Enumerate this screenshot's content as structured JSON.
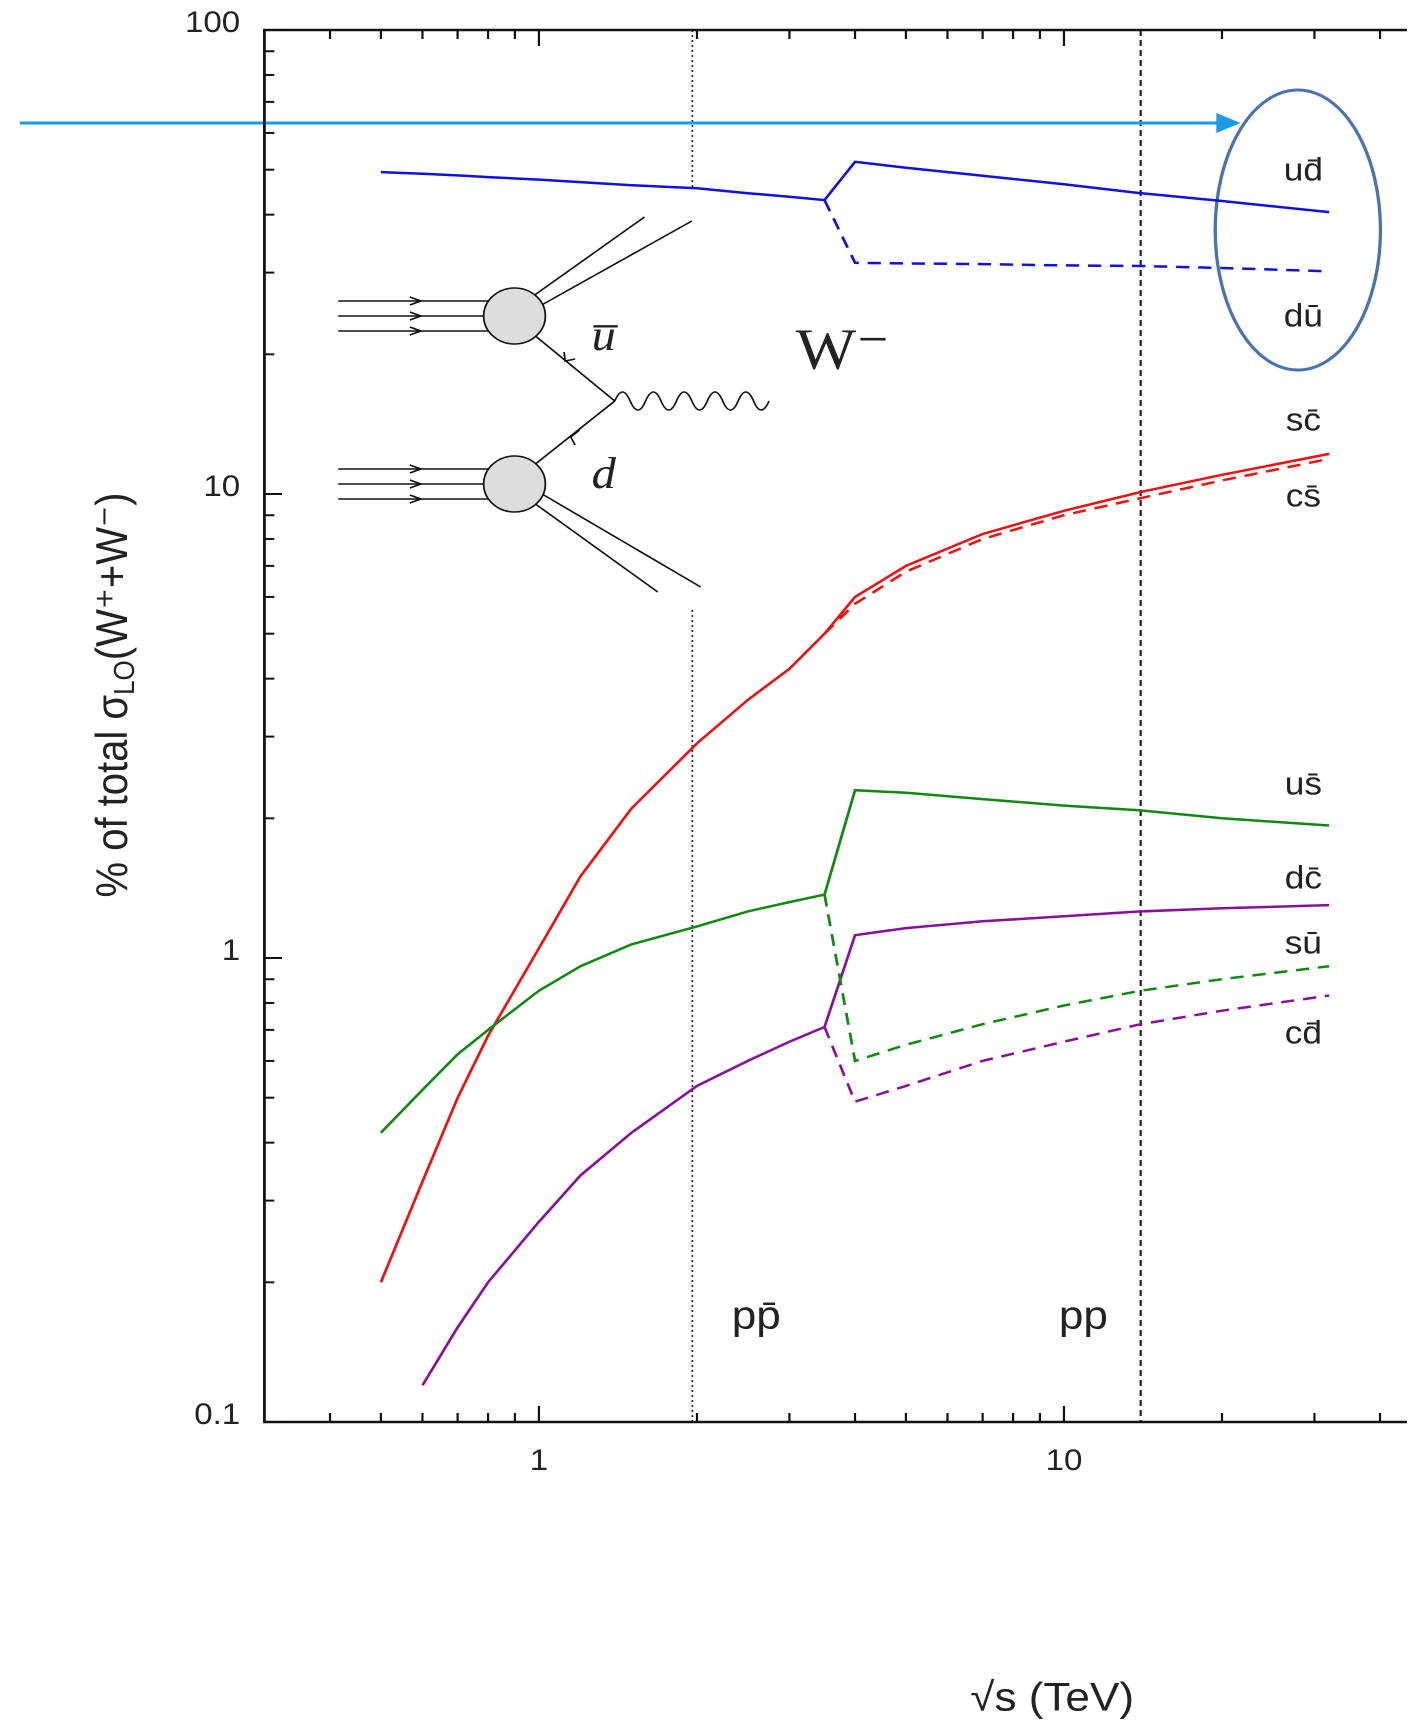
{
  "chart_data": {
    "type": "line",
    "xlabel": "√s   (TeV)",
    "ylabel": [
      "% of total σ",
      "LO",
      "(W⁺+W⁻)"
    ],
    "log_x": true,
    "log_y": true,
    "xlim": [
      0.3,
      45
    ],
    "ylim": [
      0.1,
      100
    ],
    "xticks": [
      1,
      10
    ],
    "xminor_ticks": [
      0.3,
      0.4,
      0.5,
      0.6,
      0.7,
      0.8,
      0.9,
      2,
      3,
      4,
      5,
      6,
      7,
      8,
      9,
      20,
      30,
      40
    ],
    "yticks": [
      0.1,
      1,
      10,
      100
    ],
    "yminor_ticks": [
      0.2,
      0.3,
      0.4,
      0.5,
      0.6,
      0.7,
      0.8,
      0.9,
      2,
      3,
      4,
      5,
      6,
      7,
      8,
      9,
      20,
      30,
      40,
      50,
      60,
      70,
      80,
      90
    ],
    "x": [
      0.5,
      0.6,
      0.7,
      0.8,
      1,
      1.2,
      1.5,
      2,
      2.5,
      3,
      3.5,
      4,
      5,
      7,
      10,
      14,
      20,
      32
    ],
    "series": [
      {
        "name": "ud̄",
        "color": "#1010e0",
        "dashed": false,
        "values": [
          49.4,
          49,
          48.6,
          48.2,
          47.6,
          47,
          46.3,
          45.6,
          44.5,
          43.7,
          43,
          52,
          50.5,
          48.5,
          46.5,
          44.5,
          42.8,
          40.5
        ]
      },
      {
        "name": "dū",
        "color": "#1010e0",
        "dashed": true,
        "values": [
          null,
          null,
          null,
          null,
          null,
          null,
          null,
          null,
          null,
          null,
          43,
          31.5,
          31.4,
          31.3,
          31.1,
          31,
          30.7,
          30.2
        ]
      },
      {
        "name": "sc̄",
        "color": "#ee1111",
        "dashed": false,
        "values": [
          0.2,
          0.33,
          0.5,
          0.68,
          1.05,
          1.5,
          2.1,
          2.9,
          3.6,
          4.2,
          5.0,
          6.0,
          7.0,
          8.2,
          9.2,
          10.1,
          11,
          12.2
        ]
      },
      {
        "name": "cs̄",
        "color": "#ee1111",
        "dashed": true,
        "values": [
          null,
          null,
          null,
          null,
          null,
          null,
          null,
          null,
          null,
          null,
          5.0,
          5.8,
          6.8,
          8.0,
          9.0,
          9.8,
          10.7,
          11.9
        ]
      },
      {
        "name": "us̄",
        "color": "#118811",
        "dashed": false,
        "values": [
          0.42,
          0.52,
          0.62,
          0.7,
          0.85,
          0.96,
          1.07,
          1.17,
          1.26,
          1.32,
          1.37,
          2.3,
          2.27,
          2.2,
          2.13,
          2.08,
          2.0,
          1.93
        ]
      },
      {
        "name": "dc̄",
        "color": "#881199",
        "dashed": false,
        "values": [
          null,
          0.12,
          0.16,
          0.2,
          0.27,
          0.34,
          0.42,
          0.53,
          0.6,
          0.66,
          0.71,
          1.12,
          1.16,
          1.2,
          1.23,
          1.26,
          1.28,
          1.3
        ]
      },
      {
        "name": "sū",
        "color": "#118811",
        "dashed": true,
        "values": [
          null,
          null,
          null,
          null,
          null,
          null,
          null,
          null,
          null,
          null,
          1.37,
          0.6,
          0.65,
          0.72,
          0.79,
          0.85,
          0.9,
          0.96
        ]
      },
      {
        "name": "cd̄",
        "color": "#881199",
        "dashed": true,
        "values": [
          null,
          null,
          null,
          null,
          null,
          null,
          null,
          null,
          null,
          null,
          0.71,
          0.49,
          0.53,
          0.6,
          0.66,
          0.72,
          0.77,
          0.83
        ]
      }
    ],
    "vlines": [
      {
        "x": 1.96,
        "label": "pp̄",
        "style": "dotted"
      },
      {
        "x": 14,
        "label": "pp",
        "style": "dashed"
      }
    ],
    "diagram": {
      "antiquark": "u̅",
      "quark": "d",
      "boson": "W⁻"
    }
  }
}
